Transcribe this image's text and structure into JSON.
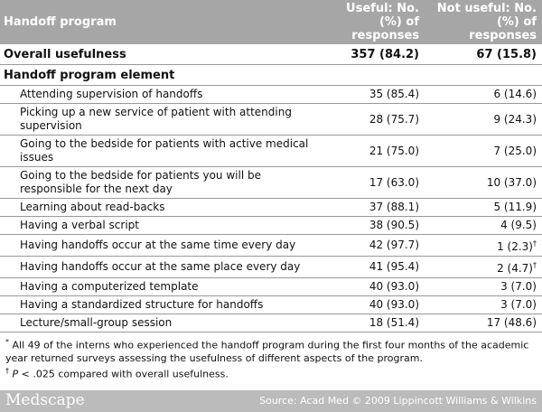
{
  "header": {
    "columns": [
      "Handoff program",
      "Useful: No. (%) of responses",
      "Not useful: No. (%) of responses"
    ]
  },
  "overall": {
    "label": "Overall usefulness",
    "useful": "357 (84.2)",
    "not_useful": "67 (15.8)"
  },
  "section": "Handoff program element",
  "table": {
    "rows": [
      {
        "label": "Attending supervision of handoffs",
        "useful": "35 (85.4)",
        "not_useful": "6 (14.6)"
      },
      {
        "label": "Picking up a new service of patient with attending supervision",
        "useful": "28 (75.7)",
        "not_useful": "9 (24.3)"
      },
      {
        "label": "Going to the bedside for patients with active medical issues",
        "useful": "21 (75.0)",
        "not_useful": "7 (25.0)"
      },
      {
        "label": "Going to the bedside for patients you will be responsible for the next day",
        "useful": "17 (63.0)",
        "not_useful": "10 (37.0)"
      },
      {
        "label": "Learning about read-backs",
        "useful": "37 (88.1)",
        "not_useful": "5 (11.9)"
      },
      {
        "label": "Having a verbal script",
        "useful": "38 (90.5)",
        "not_useful": "4 (9.5)"
      },
      {
        "label": "Having handoffs occur at the same time every day",
        "useful": "42 (97.7)",
        "not_useful": "1 (2.3)",
        "not_useful_note": "†"
      },
      {
        "label": "Having handoffs occur at the same place every day",
        "useful": "41 (95.4)",
        "not_useful": "2 (4.7)",
        "not_useful_note": "†"
      },
      {
        "label": "Having a computerized template",
        "useful": "40 (93.0)",
        "not_useful": "3 (7.0)"
      },
      {
        "label": "Having a standardized structure for handoffs",
        "useful": "40 (93.0)",
        "not_useful": "3 (7.0)"
      },
      {
        "label": "Lecture/small-group session",
        "useful": "18 (51.4)",
        "not_useful": "17 (48.6)"
      }
    ]
  },
  "footnotes": [
    {
      "mark": "*",
      "text": "All 49 of the interns who experienced the handoff program during the first four months of the academic year returned surveys assessing the usefulness of different aspects of the program."
    },
    {
      "mark": "†",
      "italic": "P",
      "text": "< .025 compared with overall usefulness."
    }
  ],
  "footer": {
    "logo": "Medscape",
    "source": "Source: Acad Med © 2009 Lippincott Williams & Wilkins"
  }
}
